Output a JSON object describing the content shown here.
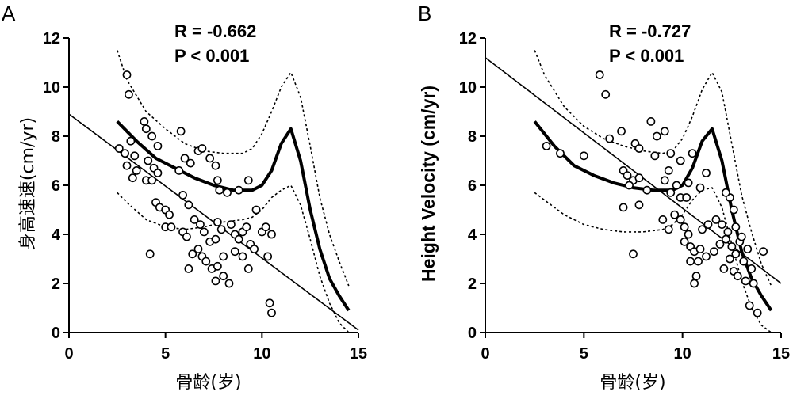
{
  "chart_data": [
    {
      "type": "scatter",
      "panel": "A",
      "xlabel": "骨龄(岁)",
      "ylabel": "身高速速(cm/yr)",
      "xlim": [
        0,
        15
      ],
      "ylim": [
        0,
        12
      ],
      "xticks": [
        "0",
        "5",
        "10",
        "15"
      ],
      "yticks": [
        "0",
        "2",
        "4",
        "6",
        "8",
        "10",
        "12"
      ],
      "annotation": [
        "R = -0.662",
        "P < 0.001"
      ],
      "grid": false,
      "points": [
        [
          3.0,
          10.5
        ],
        [
          3.1,
          9.7
        ],
        [
          2.6,
          7.5
        ],
        [
          2.9,
          7.3
        ],
        [
          3.2,
          7.8
        ],
        [
          3.4,
          7.2
        ],
        [
          3.0,
          6.8
        ],
        [
          3.3,
          6.3
        ],
        [
          3.5,
          6.6
        ],
        [
          3.9,
          8.6
        ],
        [
          4.0,
          8.3
        ],
        [
          4.3,
          8.0
        ],
        [
          4.6,
          7.6
        ],
        [
          4.1,
          7.0
        ],
        [
          4.4,
          6.7
        ],
        [
          4.6,
          6.5
        ],
        [
          4.0,
          6.2
        ],
        [
          4.3,
          6.2
        ],
        [
          4.5,
          5.3
        ],
        [
          4.7,
          5.1
        ],
        [
          5.0,
          5.0
        ],
        [
          5.2,
          4.8
        ],
        [
          4.2,
          3.2
        ],
        [
          5.0,
          4.3
        ],
        [
          5.3,
          4.3
        ],
        [
          5.8,
          8.2
        ],
        [
          5.7,
          6.6
        ],
        [
          6.0,
          7.1
        ],
        [
          6.3,
          6.9
        ],
        [
          6.7,
          7.4
        ],
        [
          6.9,
          7.5
        ],
        [
          7.3,
          7.1
        ],
        [
          7.6,
          6.8
        ],
        [
          5.9,
          5.6
        ],
        [
          6.2,
          5.2
        ],
        [
          6.5,
          4.6
        ],
        [
          6.8,
          4.4
        ],
        [
          7.0,
          4.1
        ],
        [
          7.3,
          3.7
        ],
        [
          7.6,
          3.8
        ],
        [
          5.9,
          4.1
        ],
        [
          6.1,
          3.9
        ],
        [
          6.4,
          3.2
        ],
        [
          6.7,
          3.4
        ],
        [
          6.9,
          3.1
        ],
        [
          7.1,
          2.9
        ],
        [
          7.4,
          2.6
        ],
        [
          7.7,
          2.7
        ],
        [
          6.2,
          2.6
        ],
        [
          7.6,
          2.1
        ],
        [
          8.0,
          2.3
        ],
        [
          8.3,
          2.0
        ],
        [
          8.0,
          3.1
        ],
        [
          7.9,
          4.2
        ],
        [
          7.7,
          4.5
        ],
        [
          8.4,
          4.4
        ],
        [
          8.6,
          4.0
        ],
        [
          8.8,
          3.8
        ],
        [
          9.0,
          4.1
        ],
        [
          9.2,
          4.3
        ],
        [
          9.4,
          3.6
        ],
        [
          9.6,
          3.4
        ],
        [
          8.6,
          3.3
        ],
        [
          9.0,
          3.1
        ],
        [
          9.3,
          2.6
        ],
        [
          8.8,
          5.8
        ],
        [
          9.3,
          6.2
        ],
        [
          9.7,
          5.0
        ],
        [
          10.0,
          4.1
        ],
        [
          10.2,
          4.3
        ],
        [
          10.5,
          4.0
        ],
        [
          10.3,
          3.1
        ],
        [
          10.4,
          1.2
        ],
        [
          10.5,
          0.8
        ],
        [
          8.2,
          5.7
        ],
        [
          7.7,
          6.2
        ],
        [
          7.8,
          5.8
        ]
      ],
      "series": [
        {
          "style": "linear-fit",
          "x": [
            0,
            15
          ],
          "y": [
            8.9,
            0.1
          ]
        },
        {
          "style": "mean-curve",
          "x": [
            2.5,
            3.5,
            4.5,
            5.5,
            6.5,
            7.5,
            8.5,
            9.5,
            10.0,
            10.5,
            11.0,
            11.5,
            12.0,
            12.5,
            13.0,
            13.5,
            14.0,
            14.5
          ],
          "y": [
            8.6,
            7.8,
            7.1,
            6.7,
            6.3,
            6.0,
            5.8,
            5.8,
            6.0,
            6.6,
            7.7,
            8.3,
            7.0,
            5.0,
            3.4,
            2.2,
            1.5,
            0.9
          ]
        },
        {
          "style": "upper-band",
          "x": [
            2.5,
            3.0,
            4.0,
            5.0,
            6.0,
            7.0,
            8.0,
            9.0,
            9.5,
            10.0,
            10.5,
            11.0,
            11.5,
            12.0,
            12.5,
            13.0,
            13.5,
            14.0,
            14.5
          ],
          "y": [
            11.5,
            10.3,
            9.0,
            8.3,
            7.7,
            7.4,
            7.3,
            7.3,
            7.5,
            8.1,
            9.0,
            10.0,
            10.6,
            9.6,
            7.6,
            5.5,
            4.0,
            2.9,
            1.9
          ]
        },
        {
          "style": "lower-band",
          "x": [
            2.5,
            3.0,
            4.0,
            5.0,
            6.0,
            7.0,
            8.0,
            9.0,
            9.5,
            10.0,
            10.5,
            11.0,
            11.5,
            12.0,
            12.5,
            13.0,
            13.5,
            14.0,
            14.5
          ],
          "y": [
            5.7,
            5.3,
            4.6,
            4.3,
            4.2,
            4.3,
            4.5,
            4.6,
            4.7,
            5.0,
            5.5,
            5.8,
            6.0,
            5.2,
            3.8,
            2.3,
            1.2,
            0.4,
            0.0
          ]
        }
      ]
    },
    {
      "type": "scatter",
      "panel": "B",
      "xlabel": "骨龄(岁)",
      "ylabel": "Height Velocity (cm/yr)",
      "xlim": [
        0,
        15
      ],
      "ylim": [
        0,
        12
      ],
      "xticks": [
        "0",
        "5",
        "10",
        "15"
      ],
      "yticks": [
        "0",
        "2",
        "4",
        "6",
        "8",
        "10",
        "12"
      ],
      "annotation": [
        "R = -0.727",
        "P < 0.001"
      ],
      "grid": false,
      "points": [
        [
          5.8,
          10.5
        ],
        [
          6.1,
          9.7
        ],
        [
          3.1,
          7.6
        ],
        [
          3.8,
          7.3
        ],
        [
          5.0,
          7.2
        ],
        [
          6.3,
          7.9
        ],
        [
          6.9,
          8.2
        ],
        [
          7.6,
          7.7
        ],
        [
          7.8,
          7.5
        ],
        [
          8.4,
          8.6
        ],
        [
          8.7,
          8.0
        ],
        [
          9.1,
          8.2
        ],
        [
          9.4,
          7.3
        ],
        [
          8.6,
          7.2
        ],
        [
          9.9,
          7.0
        ],
        [
          10.5,
          7.3
        ],
        [
          7.0,
          6.6
        ],
        [
          7.2,
          6.4
        ],
        [
          7.5,
          6.2
        ],
        [
          7.3,
          6.0
        ],
        [
          7.8,
          6.3
        ],
        [
          8.2,
          5.8
        ],
        [
          7.0,
          5.1
        ],
        [
          7.8,
          5.2
        ],
        [
          9.1,
          6.2
        ],
        [
          9.3,
          6.6
        ],
        [
          9.7,
          6.0
        ],
        [
          9.4,
          5.7
        ],
        [
          9.9,
          5.5
        ],
        [
          10.2,
          5.5
        ],
        [
          9.0,
          4.6
        ],
        [
          9.3,
          4.2
        ],
        [
          9.6,
          4.8
        ],
        [
          9.9,
          4.6
        ],
        [
          10.1,
          4.3
        ],
        [
          10.3,
          4.0
        ],
        [
          10.1,
          3.7
        ],
        [
          10.4,
          3.5
        ],
        [
          10.6,
          3.3
        ],
        [
          10.9,
          3.4
        ],
        [
          11.2,
          3.1
        ],
        [
          11.6,
          3.3
        ],
        [
          10.4,
          2.9
        ],
        [
          10.8,
          2.9
        ],
        [
          10.7,
          2.3
        ],
        [
          10.6,
          2.0
        ],
        [
          11.0,
          4.2
        ],
        [
          11.3,
          4.4
        ],
        [
          11.7,
          4.6
        ],
        [
          12.0,
          4.4
        ],
        [
          12.3,
          4.1
        ],
        [
          11.9,
          3.6
        ],
        [
          12.2,
          3.8
        ],
        [
          12.5,
          3.5
        ],
        [
          12.7,
          3.2
        ],
        [
          12.9,
          3.7
        ],
        [
          12.4,
          3.0
        ],
        [
          12.1,
          2.6
        ],
        [
          12.6,
          2.5
        ],
        [
          12.8,
          2.3
        ],
        [
          13.1,
          2.9
        ],
        [
          13.3,
          3.4
        ],
        [
          13.5,
          2.6
        ],
        [
          13.2,
          2.1
        ],
        [
          13.6,
          2.0
        ],
        [
          12.4,
          5.5
        ],
        [
          12.6,
          5.0
        ],
        [
          12.2,
          5.7
        ],
        [
          12.7,
          4.3
        ],
        [
          13.0,
          3.9
        ],
        [
          13.4,
          1.1
        ],
        [
          13.8,
          0.8
        ],
        [
          14.1,
          3.3
        ],
        [
          7.5,
          3.2
        ],
        [
          11.2,
          6.5
        ],
        [
          10.3,
          6.1
        ],
        [
          10.9,
          5.9
        ]
      ],
      "series": [
        {
          "style": "linear-fit",
          "x": [
            0,
            15
          ],
          "y": [
            11.2,
            2.0
          ]
        },
        {
          "style": "mean-curve",
          "x": [
            2.5,
            3.5,
            4.5,
            5.5,
            6.5,
            7.5,
            8.5,
            9.5,
            10.0,
            10.5,
            11.0,
            11.5,
            12.0,
            12.5,
            13.0,
            13.5,
            14.0,
            14.5
          ],
          "y": [
            8.6,
            7.6,
            6.8,
            6.4,
            6.1,
            5.9,
            5.8,
            5.8,
            6.0,
            6.7,
            7.8,
            8.3,
            7.0,
            5.0,
            3.3,
            2.2,
            1.5,
            0.9
          ]
        },
        {
          "style": "upper-band",
          "x": [
            2.5,
            3.0,
            4.0,
            5.0,
            6.0,
            7.0,
            8.0,
            9.0,
            9.5,
            10.0,
            10.5,
            11.0,
            11.5,
            12.0,
            12.5,
            13.0,
            13.5,
            14.0,
            14.5
          ],
          "y": [
            11.5,
            10.5,
            9.2,
            8.4,
            7.9,
            7.6,
            7.4,
            7.3,
            7.4,
            7.9,
            8.8,
            9.9,
            10.6,
            9.8,
            7.7,
            5.6,
            4.1,
            2.8,
            1.9
          ]
        },
        {
          "style": "lower-band",
          "x": [
            2.5,
            3.0,
            4.0,
            5.0,
            6.0,
            7.0,
            8.0,
            9.0,
            9.5,
            10.0,
            10.5,
            11.0,
            11.5,
            12.0,
            12.5,
            13.0,
            13.5,
            14.0,
            14.5
          ],
          "y": [
            5.7,
            5.4,
            4.8,
            4.4,
            4.2,
            4.1,
            4.1,
            4.2,
            4.4,
            4.8,
            5.4,
            5.8,
            5.9,
            5.1,
            3.6,
            2.1,
            1.0,
            0.3,
            0.0
          ]
        }
      ]
    }
  ]
}
